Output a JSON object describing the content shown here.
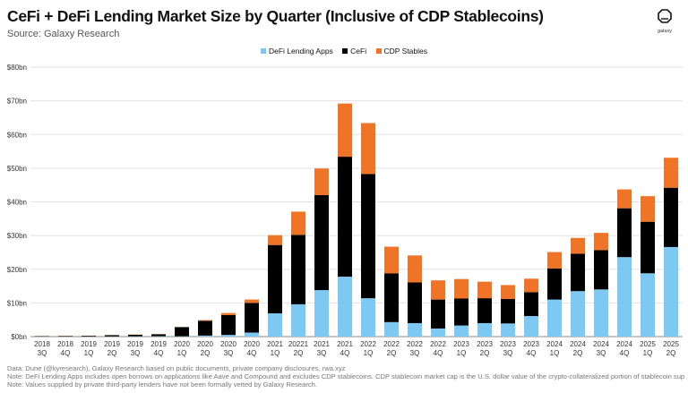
{
  "header": {
    "title": "CeFi + DeFi Lending Market Size by Quarter (Inclusive of CDP Stablecoins)",
    "subtitle": "Source: Galaxy Research",
    "logo_text": "galaxy"
  },
  "colors": {
    "defi": "#7ec8f4",
    "cefi": "#000000",
    "cdp": "#f07427",
    "grid": "#e2e2e2",
    "axis": "#888888"
  },
  "legend": [
    {
      "label": "DeFi Lending Apps",
      "color": "#7ec8f4"
    },
    {
      "label": "CeFi",
      "color": "#000000"
    },
    {
      "label": "CDP Stables",
      "color": "#f07427"
    }
  ],
  "chart_data": {
    "type": "bar",
    "stacked": true,
    "title": "CeFi + DeFi Lending Market Size by Quarter (Inclusive of CDP Stablecoins)",
    "ylim": [
      0,
      80
    ],
    "yticks": [
      0,
      10,
      20,
      30,
      40,
      50,
      60,
      70,
      80
    ],
    "ytick_labels": [
      "$0bn",
      "$10bn",
      "$20bn",
      "$30bn",
      "$40bn",
      "$50bn",
      "$60bn",
      "$70bn",
      "$80bn"
    ],
    "categories": [
      [
        "2018",
        "3Q"
      ],
      [
        "2018",
        "4Q"
      ],
      [
        "2019",
        "1Q"
      ],
      [
        "2019",
        "2Q"
      ],
      [
        "2019",
        "3Q"
      ],
      [
        "2019",
        "4Q"
      ],
      [
        "2020",
        "1Q"
      ],
      [
        "2020",
        "2Q"
      ],
      [
        "2020",
        "3Q"
      ],
      [
        "2020",
        "4Q"
      ],
      [
        "2021",
        "1Q"
      ],
      [
        "20221",
        "2Q"
      ],
      [
        "2021",
        "3Q"
      ],
      [
        "2021",
        "4Q"
      ],
      [
        "2022",
        "1Q"
      ],
      [
        "2022",
        "2Q"
      ],
      [
        "2022",
        "3Q"
      ],
      [
        "2022",
        "4Q"
      ],
      [
        "2023",
        "1Q"
      ],
      [
        "2023",
        "2Q"
      ],
      [
        "2023",
        "3Q"
      ],
      [
        "2023",
        "4Q"
      ],
      [
        "2024",
        "1Q"
      ],
      [
        "2024",
        "2Q"
      ],
      [
        "2024",
        "3Q"
      ],
      [
        "2024",
        "4Q"
      ],
      [
        "2025",
        "1Q"
      ],
      [
        "2025",
        "2Q"
      ]
    ],
    "series": [
      {
        "name": "DeFi Lending Apps",
        "values": [
          0.02,
          0.03,
          0.04,
          0.07,
          0.1,
          0.12,
          0.1,
          0.3,
          0.5,
          1.2,
          6.9,
          9.6,
          13.8,
          17.8,
          11.4,
          4.3,
          4.0,
          2.4,
          3.3,
          4.0,
          3.9,
          6.1,
          11.0,
          13.5,
          14.0,
          23.6,
          18.8,
          26.6
        ]
      },
      {
        "name": "CeFi",
        "values": [
          0.1,
          0.15,
          0.2,
          0.35,
          0.45,
          0.55,
          2.7,
          4.4,
          5.9,
          8.8,
          20.3,
          20.6,
          28.2,
          35.6,
          36.9,
          14.5,
          12.1,
          8.6,
          8.0,
          7.4,
          7.3,
          7.1,
          9.2,
          11.1,
          11.7,
          14.5,
          15.3,
          17.6
        ]
      },
      {
        "name": "CDP Stables",
        "values": [
          0.05,
          0.05,
          0.05,
          0.06,
          0.06,
          0.08,
          0.05,
          0.2,
          0.6,
          1.0,
          2.9,
          6.9,
          7.9,
          15.8,
          15.1,
          7.9,
          8.0,
          5.7,
          5.8,
          4.9,
          4.1,
          4.0,
          4.9,
          4.7,
          5.1,
          5.6,
          7.6,
          8.9
        ]
      }
    ]
  },
  "footnotes": [
    "Data: Dune (@kyresearch), Galaxy Research based on public documents, private company disclosures, rwa.xyz",
    "Note: DeFi Lending Apps includes open borrows on applications like Aave and Compound and excludes CDP stablecoins. CDP stablecoin market cap is the U.S. dollar value of the crypto-collateralized portion of stablecoin supply.",
    "Note: Values supplied by private third-party lenders have not been formally vetted  by Galaxy Research."
  ]
}
